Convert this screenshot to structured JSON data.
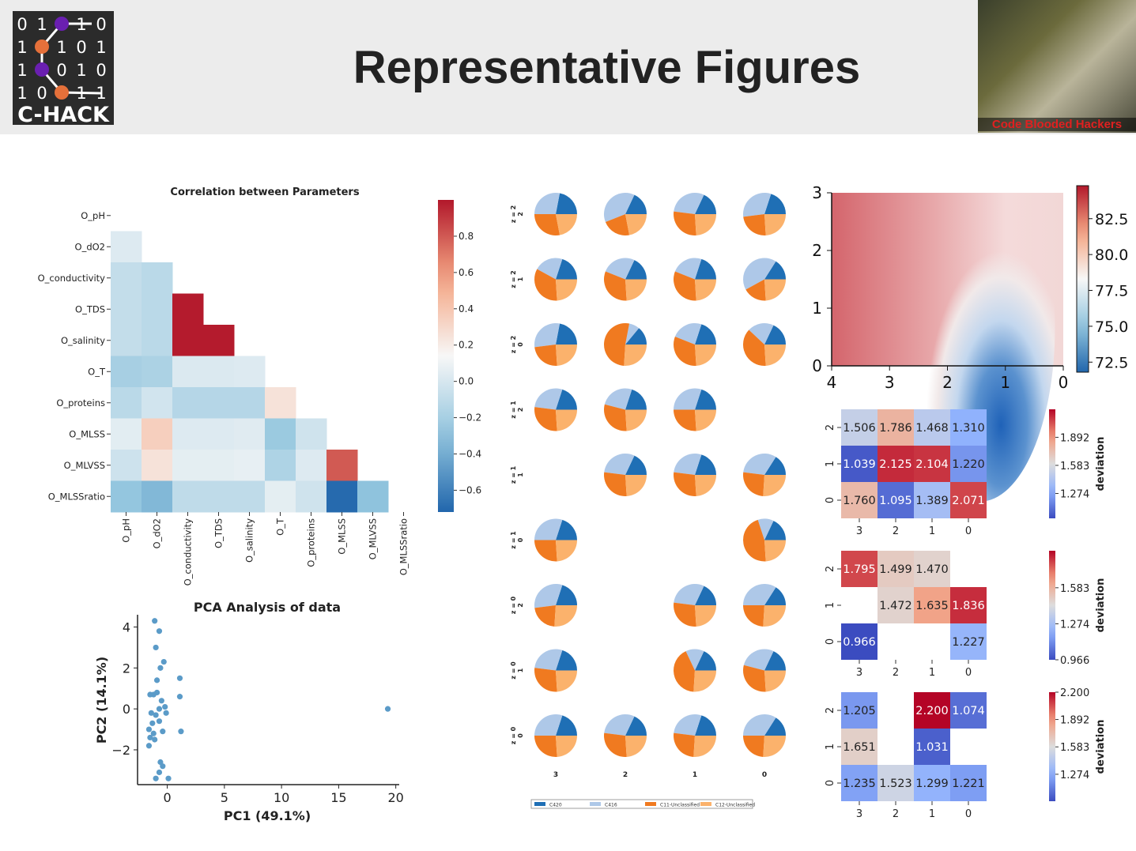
{
  "slide": {
    "title": "Representative Figures",
    "photo_caption": "Code Blooded Hackers"
  },
  "logo": {
    "bits": [
      [
        "0",
        "1",
        "",
        "1",
        "0"
      ],
      [
        "1",
        "",
        "1",
        "0",
        "1"
      ],
      [
        "1",
        "",
        "0",
        "1",
        "0"
      ],
      [
        "1",
        "0",
        "",
        "1",
        "1"
      ]
    ],
    "name": "C-HACK",
    "nodes": [
      {
        "row": 0,
        "col": 2,
        "color": "#6a1fb0"
      },
      {
        "row": 1,
        "col": 1,
        "color": "#e5703a"
      },
      {
        "row": 2,
        "col": 1,
        "color": "#6a1fb0"
      },
      {
        "row": 3,
        "col": 2,
        "color": "#e5703a"
      }
    ]
  },
  "chart_data": [
    {
      "type": "heatmap",
      "title": "Correlation between Parameters",
      "labels": [
        "O_pH",
        "O_dO2",
        "O_conductivity",
        "O_TDS",
        "O_salinity",
        "O_T",
        "O_proteins",
        "O_MLSS",
        "O_MLVSS",
        "O_MLSSratio"
      ],
      "matrix": [
        [
          null,
          null,
          null,
          null,
          null,
          null,
          null,
          null,
          null,
          null
        ],
        [
          0.03,
          null,
          null,
          null,
          null,
          null,
          null,
          null,
          null,
          null
        ],
        [
          -0.08,
          -0.12,
          null,
          null,
          null,
          null,
          null,
          null,
          null,
          null
        ],
        [
          -0.08,
          -0.12,
          0.99,
          null,
          null,
          null,
          null,
          null,
          null,
          null
        ],
        [
          -0.08,
          -0.12,
          0.99,
          0.99,
          null,
          null,
          null,
          null,
          null,
          null
        ],
        [
          -0.2,
          -0.18,
          0.02,
          0.02,
          0.03,
          null,
          null,
          null,
          null,
          null
        ],
        [
          -0.12,
          -0.02,
          -0.14,
          -0.14,
          -0.14,
          0.25,
          null,
          null,
          null,
          null
        ],
        [
          0.05,
          0.35,
          0.03,
          0.03,
          0.04,
          -0.25,
          -0.03,
          null,
          null,
          null
        ],
        [
          -0.04,
          0.25,
          0.06,
          0.06,
          0.07,
          -0.17,
          0.03,
          0.8,
          null,
          null
        ],
        [
          -0.28,
          -0.35,
          -0.1,
          -0.1,
          -0.1,
          0.06,
          -0.03,
          -0.7,
          -0.3,
          null
        ]
      ],
      "colorbar_ticks": [
        0.8,
        0.6,
        0.4,
        0.2,
        0.0,
        -0.2,
        -0.4,
        -0.6
      ],
      "colorbar_tick_labels": [
        "0.8",
        "0.6",
        "0.4",
        "0.2",
        "0.0",
        "−0.2",
        "−0.4",
        "−0.6"
      ],
      "vmin": -0.72,
      "vmax": 1.0
    },
    {
      "type": "scatter",
      "title": "PCA Analysis of data",
      "xlabel": "PC1 (49.1%)",
      "ylabel": "PC2 (14.1%)",
      "xlim": [
        -2.6,
        20.3
      ],
      "ylim": [
        -3.7,
        4.6
      ],
      "xticks": [
        0,
        5,
        10,
        15,
        20
      ],
      "yticks": [
        -2,
        0,
        2,
        4
      ],
      "xtick_labels": [
        "0",
        "5",
        "10",
        "15",
        "20"
      ],
      "ytick_labels": [
        "−2",
        "0",
        "2",
        "4"
      ],
      "color": "#5b9bc8",
      "points": [
        [
          -1.1,
          4.3
        ],
        [
          -0.7,
          3.8
        ],
        [
          -1.0,
          3.0
        ],
        [
          -0.3,
          2.3
        ],
        [
          -0.6,
          2.0
        ],
        [
          1.1,
          1.5
        ],
        [
          -0.9,
          1.4
        ],
        [
          -1.2,
          0.7
        ],
        [
          -1.5,
          0.7
        ],
        [
          -0.9,
          0.8
        ],
        [
          1.1,
          0.6
        ],
        [
          -0.5,
          0.4
        ],
        [
          -0.2,
          0.1
        ],
        [
          -0.7,
          0.0
        ],
        [
          -1.4,
          -0.2
        ],
        [
          -1.0,
          -0.3
        ],
        [
          -0.1,
          -0.2
        ],
        [
          -1.3,
          -0.7
        ],
        [
          -0.7,
          -0.6
        ],
        [
          -1.6,
          -1.0
        ],
        [
          -1.2,
          -1.2
        ],
        [
          -0.4,
          -1.1
        ],
        [
          1.2,
          -1.1
        ],
        [
          -1.5,
          -1.4
        ],
        [
          -1.1,
          -1.5
        ],
        [
          -1.6,
          -1.8
        ],
        [
          -0.6,
          -2.6
        ],
        [
          -0.4,
          -2.8
        ],
        [
          -0.7,
          -3.1
        ],
        [
          -1.0,
          -3.4
        ],
        [
          0.1,
          -3.4
        ],
        [
          19.3,
          0.0
        ]
      ]
    },
    {
      "type": "pie",
      "legend": [
        "C420",
        "C416",
        "C11-Unclassified",
        "C12-Unclassified"
      ],
      "colors": [
        "#1f6fb5",
        "#aec8e8",
        "#f07a20",
        "#fbb26c"
      ],
      "row_labels": [
        [
          "z = 2",
          "2"
        ],
        [
          "z = 2",
          "1"
        ],
        [
          "z = 2",
          "0"
        ],
        [
          "z = 1",
          "2"
        ],
        [
          "z = 1",
          "1"
        ],
        [
          "z = 1",
          "0"
        ],
        [
          "z = 0",
          "2"
        ],
        [
          "z = 0",
          "1"
        ],
        [
          "z = 0",
          "0"
        ]
      ],
      "col_labels": [
        "3",
        "2",
        "1",
        "0"
      ],
      "grid": [
        [
          [
            22,
            28,
            28,
            22
          ],
          [
            18,
            38,
            22,
            22
          ],
          [
            18,
            30,
            28,
            24
          ],
          [
            20,
            32,
            24,
            24
          ]
        ],
        [
          [
            20,
            22,
            34,
            24
          ],
          [
            18,
            26,
            32,
            24
          ],
          [
            20,
            24,
            32,
            24
          ],
          [
            16,
            42,
            18,
            24
          ]
        ],
        [
          [
            22,
            30,
            24,
            24
          ],
          [
            14,
            8,
            52,
            26
          ],
          [
            20,
            24,
            32,
            24
          ],
          [
            18,
            20,
            38,
            24
          ]
        ],
        [
          [
            20,
            28,
            28,
            24
          ],
          [
            20,
            26,
            30,
            24
          ],
          [
            20,
            30,
            26,
            24
          ],
          null
        ],
        [
          null,
          [
            18,
            30,
            28,
            24
          ],
          [
            20,
            28,
            28,
            24
          ],
          [
            16,
            32,
            26,
            26
          ]
        ],
        [
          [
            20,
            30,
            26,
            24
          ],
          null,
          null,
          [
            18,
            12,
            46,
            24
          ]
        ],
        [
          [
            20,
            32,
            22,
            26
          ],
          null,
          [
            18,
            30,
            28,
            24
          ],
          [
            16,
            34,
            24,
            26
          ]
        ],
        [
          [
            20,
            28,
            28,
            24
          ],
          null,
          [
            18,
            14,
            42,
            26
          ],
          [
            18,
            28,
            30,
            24
          ]
        ],
        [
          [
            20,
            30,
            26,
            24
          ],
          [
            18,
            30,
            28,
            24
          ],
          [
            20,
            28,
            26,
            26
          ],
          [
            16,
            34,
            24,
            26
          ]
        ]
      ]
    },
    {
      "type": "heatmap",
      "x_ticks": [
        "4",
        "3",
        "2",
        "1",
        "0"
      ],
      "y_ticks": [
        "0",
        "1",
        "2",
        "3"
      ],
      "colorbar_tick_labels": [
        "82.5",
        "80.0",
        "77.5",
        "75.0",
        "72.5"
      ],
      "vmin": 71.8,
      "vmax": 84.8
    },
    {
      "type": "heatmap",
      "colorbar_label": "deviation",
      "x_labels": [
        "3",
        "2",
        "1",
        "0"
      ],
      "y_labels": [
        "2",
        "1",
        "0"
      ],
      "values": [
        [
          1.506,
          1.786,
          1.468,
          1.31
        ],
        [
          1.039,
          2.125,
          2.104,
          1.22
        ],
        [
          1.76,
          1.095,
          1.389,
          2.071
        ]
      ],
      "vmin": 1.0,
      "vmax": 2.2,
      "colorbar_ticks": [
        1.892,
        1.583,
        1.274
      ],
      "colorbar_tick_labels": [
        "1.892",
        "1.583",
        "1.274"
      ]
    },
    {
      "type": "heatmap",
      "colorbar_label": "deviation",
      "x_labels": [
        "3",
        "2",
        "1",
        "0"
      ],
      "y_labels": [
        "2",
        "1",
        "0"
      ],
      "values": [
        [
          1.795,
          1.499,
          1.47,
          null
        ],
        [
          null,
          1.472,
          1.635,
          1.836
        ],
        [
          0.966,
          null,
          null,
          1.227
        ]
      ],
      "vmin": 0.966,
      "vmax": 1.9,
      "colorbar_ticks": [
        1.583,
        1.274,
        0.966
      ],
      "colorbar_tick_labels": [
        "1.583",
        "1.274",
        "0.966"
      ]
    },
    {
      "type": "heatmap",
      "colorbar_label": "deviation",
      "x_labels": [
        "3",
        "2",
        "1",
        "0"
      ],
      "y_labels": [
        "2",
        "1",
        "0"
      ],
      "values": [
        [
          1.205,
          null,
          2.2,
          1.074
        ],
        [
          1.651,
          null,
          1.031,
          null
        ],
        [
          1.235,
          1.523,
          1.299,
          1.221
        ]
      ],
      "vmin": 0.97,
      "vmax": 2.2,
      "colorbar_ticks": [
        2.2,
        1.892,
        1.583,
        1.274
      ],
      "colorbar_tick_labels": [
        "2.200",
        "1.892",
        "1.583",
        "1.274"
      ]
    }
  ]
}
